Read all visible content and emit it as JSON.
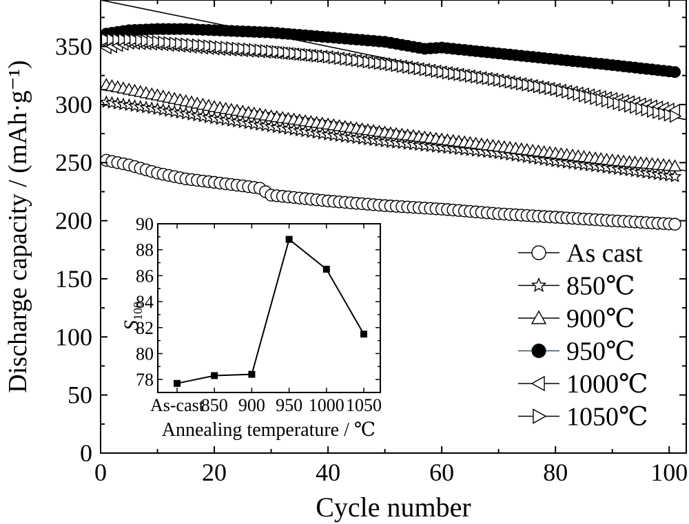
{
  "chart_data": [
    {
      "type": "line",
      "xlabel": "Cycle number",
      "ylabel": "Discharge capacity / (mAh·g⁻¹)",
      "xlim": [
        0,
        103
      ],
      "ylim": [
        0,
        390
      ],
      "xticks": [
        0,
        20,
        40,
        60,
        80,
        100
      ],
      "yticks": [
        0,
        50,
        100,
        150,
        200,
        250,
        300,
        350
      ],
      "legend_position": "right",
      "grid": false,
      "series": [
        {
          "name": "As cast",
          "marker": "circle-open",
          "x": [
            1,
            5,
            10,
            15,
            20,
            25,
            28,
            30,
            40,
            50,
            60,
            70,
            80,
            90,
            101
          ],
          "y": [
            252,
            248,
            241,
            236,
            233,
            230,
            228,
            222,
            217,
            213,
            210,
            206,
            203,
            200,
            197
          ]
        },
        {
          "name": "850℃",
          "marker": "star-open",
          "x": [
            1,
            10,
            20,
            30,
            40,
            50,
            60,
            70,
            80,
            90,
            101
          ],
          "y": [
            302,
            296,
            288,
            281,
            274,
            268,
            263,
            258,
            251,
            245,
            238
          ]
        },
        {
          "name": "900℃",
          "marker": "triangle-up-open",
          "x": [
            1,
            10,
            20,
            30,
            40,
            50,
            60,
            70,
            80,
            90,
            101
          ],
          "y": [
            317,
            308,
            298,
            290,
            283,
            276,
            270,
            264,
            258,
            252,
            247
          ]
        },
        {
          "name": "950℃",
          "marker": "circle-filled",
          "x": [
            1,
            5,
            10,
            15,
            20,
            30,
            40,
            50,
            57,
            60,
            70,
            80,
            90,
            101
          ],
          "y": [
            361,
            364,
            365,
            365,
            364,
            362,
            358,
            354,
            348,
            349,
            344,
            339,
            334,
            328
          ]
        },
        {
          "name": "1000℃",
          "marker": "triangle-left-open",
          "x": [
            1,
            5,
            10,
            20,
            30,
            40,
            50,
            60,
            70,
            80,
            90,
            101
          ],
          "y": [
            349,
            353,
            352,
            348,
            345,
            341,
            335,
            328,
            321,
            313,
            305,
            295
          ]
        },
        {
          "name": "1050℃",
          "marker": "triangle-right-open",
          "x": [
            1,
            5,
            10,
            20,
            30,
            40,
            50,
            60,
            70,
            80,
            90,
            101
          ],
          "y": [
            356,
            356,
            354,
            350,
            346,
            341,
            335,
            328,
            321,
            313,
            302,
            290
          ]
        }
      ],
      "extra_lines": [
        {
          "x": [
            0,
            103
          ],
          "y": [
            390,
            287
          ]
        },
        {
          "x": [
            0,
            103
          ],
          "y": [
            313,
            243
          ]
        }
      ]
    },
    {
      "type": "line",
      "subtype": "inset",
      "ylabel": "S",
      "ylabel_sub": "100",
      "xlabel": "Annealing temperature / ℃",
      "categories": [
        "As-cast",
        "850",
        "900",
        "950",
        "1000",
        "1050"
      ],
      "values": [
        77.7,
        78.3,
        78.4,
        88.8,
        86.5,
        81.5
      ],
      "ylim": [
        77,
        90
      ],
      "yticks": [
        78,
        80,
        82,
        84,
        86,
        88,
        90
      ],
      "marker": "square-filled"
    }
  ]
}
